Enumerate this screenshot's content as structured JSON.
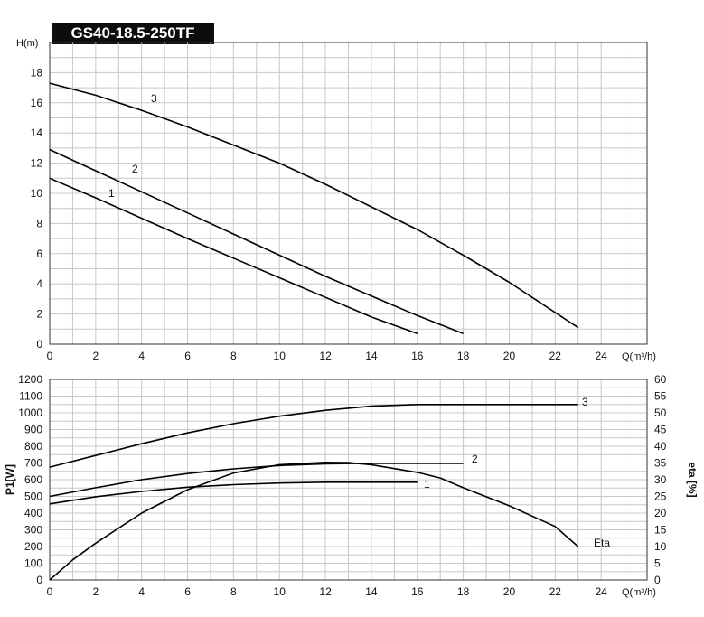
{
  "title": "GS40-18.5-250TF",
  "chart_data": [
    {
      "type": "line",
      "xlabel": "Q(m³/h)",
      "ylabel": "H(m)",
      "xlim": [
        0,
        26
      ],
      "ylim": [
        0,
        20
      ],
      "x_ticks": [
        "0",
        "2",
        "4",
        "6",
        "8",
        "10",
        "12",
        "14",
        "16",
        "18",
        "20",
        "22",
        "24"
      ],
      "y_ticks": [
        "0",
        "2",
        "4",
        "6",
        "8",
        "10",
        "12",
        "14",
        "16",
        "18"
      ],
      "grid": true,
      "series": [
        {
          "name": "1",
          "x": [
            0,
            2,
            4,
            6,
            8,
            10,
            12,
            14,
            16
          ],
          "y": [
            11.0,
            9.7,
            8.35,
            7.0,
            5.7,
            4.4,
            3.1,
            1.8,
            0.7
          ]
        },
        {
          "name": "2",
          "x": [
            0,
            2,
            4,
            6,
            8,
            10,
            12,
            14,
            16,
            18
          ],
          "y": [
            12.9,
            11.5,
            10.1,
            8.7,
            7.3,
            5.9,
            4.5,
            3.2,
            1.9,
            0.7
          ]
        },
        {
          "name": "3",
          "x": [
            0,
            2,
            4,
            6,
            8,
            10,
            12,
            14,
            16,
            18,
            20,
            22,
            23
          ],
          "y": [
            17.3,
            16.5,
            15.5,
            14.4,
            13.2,
            12.0,
            10.6,
            9.1,
            7.6,
            5.9,
            4.1,
            2.1,
            1.1
          ]
        }
      ]
    },
    {
      "type": "line",
      "xlabel": "Q(m³/h)",
      "ylabel": "P1[W]",
      "y2label": "eta [%]",
      "xlim": [
        0,
        26
      ],
      "ylim": [
        0,
        1200
      ],
      "y2lim": [
        0,
        60
      ],
      "x_ticks": [
        "0",
        "2",
        "4",
        "6",
        "8",
        "10",
        "12",
        "14",
        "16",
        "18",
        "20",
        "22",
        "24"
      ],
      "y_ticks": [
        "0",
        "100",
        "200",
        "300",
        "400",
        "500",
        "600",
        "700",
        "800",
        "900",
        "1000",
        "1100",
        "1200"
      ],
      "y2_ticks": [
        "0",
        "5",
        "10",
        "15",
        "20",
        "25",
        "30",
        "35",
        "40",
        "45",
        "50",
        "55",
        "60"
      ],
      "grid": true,
      "series": [
        {
          "name": "1",
          "x": [
            0,
            2,
            4,
            6,
            8,
            10,
            12,
            14,
            16
          ],
          "y": [
            455,
            498,
            530,
            555,
            570,
            580,
            585,
            585,
            585
          ]
        },
        {
          "name": "2",
          "x": [
            0,
            2,
            4,
            6,
            8,
            10,
            12,
            14,
            16,
            18
          ],
          "y": [
            500,
            552,
            600,
            637,
            665,
            685,
            695,
            698,
            698,
            698
          ]
        },
        {
          "name": "3",
          "x": [
            0,
            2,
            4,
            6,
            8,
            10,
            12,
            14,
            16,
            18,
            20,
            22,
            23
          ],
          "y": [
            675,
            745,
            815,
            880,
            935,
            980,
            1015,
            1040,
            1050,
            1050,
            1050,
            1050,
            1050
          ]
        },
        {
          "name": "Eta",
          "axis": "right",
          "x": [
            0,
            1,
            2,
            4,
            6,
            8,
            10,
            12,
            13,
            14,
            16,
            17,
            18,
            20,
            22,
            23
          ],
          "y": [
            0,
            6,
            11,
            20,
            27,
            32,
            34.5,
            35.2,
            35.1,
            34.5,
            32.2,
            30.5,
            27.6,
            22.2,
            16,
            10
          ]
        }
      ]
    }
  ]
}
